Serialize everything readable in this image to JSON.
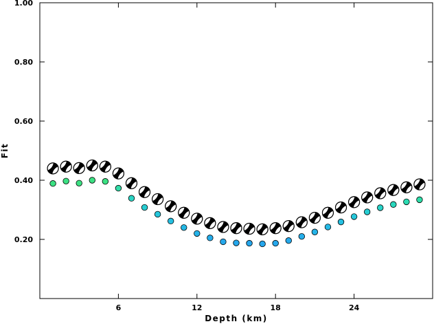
{
  "chart_data": {
    "type": "scatter",
    "title": "",
    "xlabel": "Depth (km)",
    "ylabel": "Fit",
    "xlim": [
      0,
      30
    ],
    "ylim": [
      0,
      1
    ],
    "x_ticks": [
      {
        "value": 6,
        "label": "6"
      },
      {
        "value": 12,
        "label": "12"
      },
      {
        "value": 18,
        "label": "18"
      },
      {
        "value": 24,
        "label": "24"
      }
    ],
    "y_ticks": [
      {
        "value": 0.2,
        "label": "0.20"
      },
      {
        "value": 0.4,
        "label": "0.40"
      },
      {
        "value": 0.6,
        "label": "0.60"
      },
      {
        "value": 0.8,
        "label": "0.80"
      },
      {
        "value": 1.0,
        "label": "1.00"
      }
    ],
    "grid": false,
    "series": [
      {
        "marker": "focal-mechanism",
        "x": [
          1,
          2,
          3,
          4,
          5,
          6,
          7,
          8,
          9,
          10,
          11,
          12,
          13,
          14,
          15,
          16,
          17,
          18,
          19,
          20,
          21,
          22,
          23,
          24,
          25,
          26,
          27,
          28,
          29
        ],
        "values": [
          0.44,
          0.446,
          0.441,
          0.45,
          0.446,
          0.423,
          0.39,
          0.36,
          0.336,
          0.312,
          0.29,
          0.27,
          0.255,
          0.242,
          0.238,
          0.236,
          0.234,
          0.238,
          0.245,
          0.258,
          0.273,
          0.29,
          0.308,
          0.326,
          0.342,
          0.356,
          0.367,
          0.376,
          0.386
        ]
      },
      {
        "marker": "circle",
        "x": [
          1,
          2,
          3,
          4,
          5,
          6,
          7,
          8,
          9,
          10,
          11,
          12,
          13,
          14,
          15,
          16,
          17,
          18,
          19,
          20,
          21,
          22,
          23,
          24,
          25,
          26,
          27,
          28,
          29
        ],
        "values": [
          0.389,
          0.397,
          0.39,
          0.4,
          0.396,
          0.373,
          0.339,
          0.308,
          0.285,
          0.262,
          0.24,
          0.22,
          0.205,
          0.192,
          0.188,
          0.187,
          0.185,
          0.187,
          0.196,
          0.21,
          0.225,
          0.242,
          0.259,
          0.277,
          0.293,
          0.307,
          0.318,
          0.327,
          0.334
        ],
        "colors": [
          "#3ce183",
          "#3ce183",
          "#3ce183",
          "#3ce183",
          "#3ce183",
          "#33dca8",
          "#2ad4c4",
          "#27cdd2",
          "#26c6db",
          "#25bfe1",
          "#25b8e5",
          "#25b2e8",
          "#25acea",
          "#25a8eb",
          "#25a7ec",
          "#25a6ec",
          "#25a6ec",
          "#25a7ec",
          "#25a9eb",
          "#25aeea",
          "#25b4e8",
          "#25bae6",
          "#25c0e1",
          "#26c7da",
          "#27cdd2",
          "#28d3c8",
          "#2ad7bd",
          "#2cdbb2",
          "#2edda8"
        ]
      }
    ]
  }
}
